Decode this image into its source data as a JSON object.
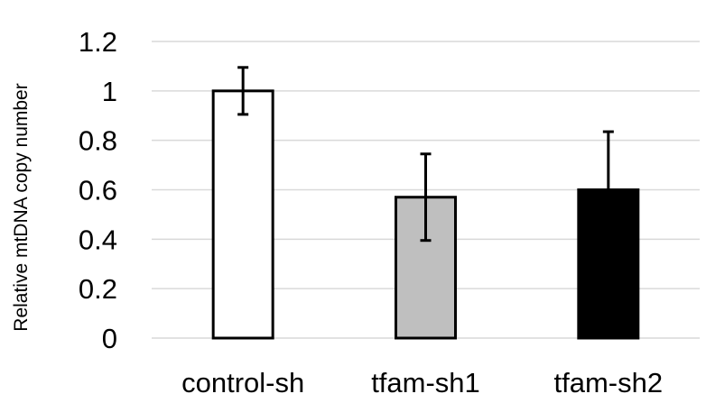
{
  "chart_data": {
    "type": "bar",
    "title": "",
    "xlabel": "",
    "ylabel": "Relative mtDNA copy number",
    "ylim": [
      0,
      1.2
    ],
    "yticks": [
      "0",
      "0.2",
      "0.4",
      "0.6",
      "0.8",
      "1",
      "1.2"
    ],
    "grid": true,
    "categories": [
      "control-sh",
      "tfam-sh1",
      "tfam-sh2"
    ],
    "values": [
      1.0,
      0.57,
      0.6
    ],
    "errors": [
      0.095,
      0.175,
      0.235
    ],
    "colors": [
      "#ffffff",
      "#bfbfbf",
      "#000000"
    ]
  }
}
